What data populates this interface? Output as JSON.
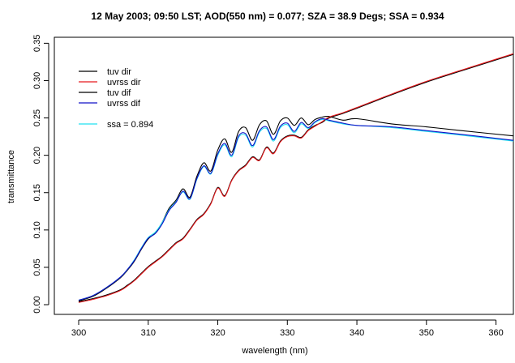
{
  "chart_data": {
    "type": "line",
    "title": "12 May 2003; 09:50 LST; AOD(550 nm) = 0.077; SZA = 38.9 Degs; SSA = 0.934",
    "xlabel": "wavelength (nm)",
    "ylabel": "transmittance",
    "xlim": [
      296.5,
      362.5
    ],
    "ylim": [
      -0.013,
      0.358
    ],
    "x_ticks": [
      300,
      310,
      320,
      330,
      340,
      350,
      360
    ],
    "y_ticks": [
      0.0,
      0.05,
      0.1,
      0.15,
      0.2,
      0.25,
      0.3,
      0.35
    ],
    "x_tick_labels": [
      "300",
      "310",
      "320",
      "330",
      "340",
      "350",
      "360"
    ],
    "y_tick_labels": [
      "0.00",
      "0.05",
      "0.10",
      "0.15",
      "0.20",
      "0.25",
      "0.30",
      "0.35"
    ],
    "grid": false,
    "legend_position": "top-left",
    "legend_entries": [
      {
        "label": "tuv dir",
        "color": "#000000"
      },
      {
        "label": "uvrss  dir",
        "color": "#e8191c"
      },
      {
        "label": "tuv dif",
        "color": "#000000"
      },
      {
        "label": "uvrss dif",
        "color": "#1010c8"
      },
      {
        "label": "ssa = 0.894",
        "color": "#22e0f0"
      }
    ],
    "series": [
      {
        "name": "tuv dir",
        "color": "#000000",
        "x": [
          300,
          302,
          304,
          306,
          307,
          308,
          309,
          310,
          311,
          312,
          313,
          314,
          315,
          316,
          317,
          318,
          319,
          320,
          321,
          322,
          323,
          324,
          325,
          326,
          327,
          328,
          329,
          330,
          331,
          332,
          333,
          334,
          335,
          336,
          338,
          340,
          345,
          350,
          355,
          362.5
        ],
        "y": [
          0.004,
          0.008,
          0.013,
          0.02,
          0.026,
          0.033,
          0.042,
          0.051,
          0.058,
          0.065,
          0.074,
          0.083,
          0.089,
          0.101,
          0.114,
          0.122,
          0.136,
          0.157,
          0.146,
          0.167,
          0.18,
          0.187,
          0.198,
          0.194,
          0.211,
          0.203,
          0.219,
          0.226,
          0.227,
          0.224,
          0.234,
          0.24,
          0.244,
          0.25,
          0.256,
          0.263,
          0.281,
          0.298,
          0.313,
          0.335
        ]
      },
      {
        "name": "uvrss  dir",
        "color": "#e8191c",
        "x": [
          300,
          302,
          304,
          306,
          307,
          308,
          309,
          310,
          311,
          312,
          313,
          314,
          315,
          316,
          317,
          318,
          319,
          320,
          321,
          322,
          323,
          324,
          325,
          326,
          327,
          328,
          329,
          330,
          331,
          332,
          333,
          334,
          335,
          336,
          338,
          340,
          345,
          350,
          355,
          362.5
        ],
        "y": [
          0.003,
          0.007,
          0.012,
          0.019,
          0.025,
          0.032,
          0.041,
          0.05,
          0.057,
          0.064,
          0.073,
          0.082,
          0.088,
          0.1,
          0.113,
          0.121,
          0.135,
          0.156,
          0.145,
          0.166,
          0.179,
          0.186,
          0.197,
          0.193,
          0.21,
          0.202,
          0.218,
          0.225,
          0.226,
          0.223,
          0.233,
          0.239,
          0.245,
          0.251,
          0.257,
          0.264,
          0.282,
          0.299,
          0.314,
          0.336
        ]
      },
      {
        "name": "tuv dif",
        "color": "#000000",
        "x": [
          300,
          302,
          304,
          306,
          307,
          308,
          309,
          310,
          311,
          312,
          313,
          314,
          315,
          316,
          317,
          318,
          319,
          320,
          321,
          322,
          323,
          324,
          325,
          326,
          327,
          328,
          329,
          330,
          331,
          332,
          333,
          334,
          335,
          336,
          338,
          340,
          345,
          350,
          355,
          362.5
        ],
        "y": [
          0.005,
          0.011,
          0.022,
          0.036,
          0.046,
          0.058,
          0.074,
          0.088,
          0.096,
          0.11,
          0.129,
          0.14,
          0.155,
          0.144,
          0.172,
          0.19,
          0.179,
          0.207,
          0.222,
          0.204,
          0.232,
          0.237,
          0.22,
          0.241,
          0.246,
          0.228,
          0.246,
          0.25,
          0.24,
          0.25,
          0.241,
          0.248,
          0.251,
          0.252,
          0.247,
          0.249,
          0.242,
          0.238,
          0.233,
          0.226
        ]
      },
      {
        "name": "uvrss dif",
        "color": "#1010c8",
        "x": [
          300,
          302,
          304,
          306,
          307,
          308,
          309,
          310,
          311,
          312,
          313,
          314,
          315,
          316,
          317,
          318,
          319,
          320,
          321,
          322,
          323,
          324,
          325,
          326,
          327,
          328,
          329,
          330,
          331,
          332,
          333,
          334,
          335,
          336,
          338,
          340,
          345,
          350,
          355,
          362.5
        ],
        "y": [
          0.006,
          0.012,
          0.023,
          0.037,
          0.047,
          0.059,
          0.075,
          0.089,
          0.095,
          0.108,
          0.126,
          0.137,
          0.152,
          0.142,
          0.169,
          0.186,
          0.176,
          0.202,
          0.216,
          0.2,
          0.226,
          0.229,
          0.213,
          0.233,
          0.238,
          0.221,
          0.239,
          0.243,
          0.232,
          0.244,
          0.237,
          0.245,
          0.249,
          0.247,
          0.243,
          0.24,
          0.238,
          0.233,
          0.228,
          0.22
        ]
      },
      {
        "name": "ssa = 0.894",
        "color": "#22e0f0",
        "x": [
          300,
          302,
          304,
          306,
          307,
          308,
          309,
          310,
          311,
          312,
          313,
          314,
          315,
          316,
          317,
          318,
          319,
          320,
          321,
          322,
          323,
          324,
          325,
          326,
          327,
          328,
          329,
          330,
          331,
          332,
          333,
          334,
          335,
          336,
          338,
          340,
          345,
          350,
          355,
          362.5
        ],
        "y": [
          0.006,
          0.012,
          0.023,
          0.037,
          0.047,
          0.06,
          0.076,
          0.09,
          0.097,
          0.11,
          0.127,
          0.138,
          0.151,
          0.141,
          0.168,
          0.185,
          0.175,
          0.2,
          0.214,
          0.198,
          0.224,
          0.227,
          0.211,
          0.231,
          0.236,
          0.219,
          0.237,
          0.241,
          0.23,
          0.242,
          0.236,
          0.244,
          0.248,
          0.246,
          0.242,
          0.24,
          0.237,
          0.232,
          0.227,
          0.219
        ]
      }
    ]
  }
}
